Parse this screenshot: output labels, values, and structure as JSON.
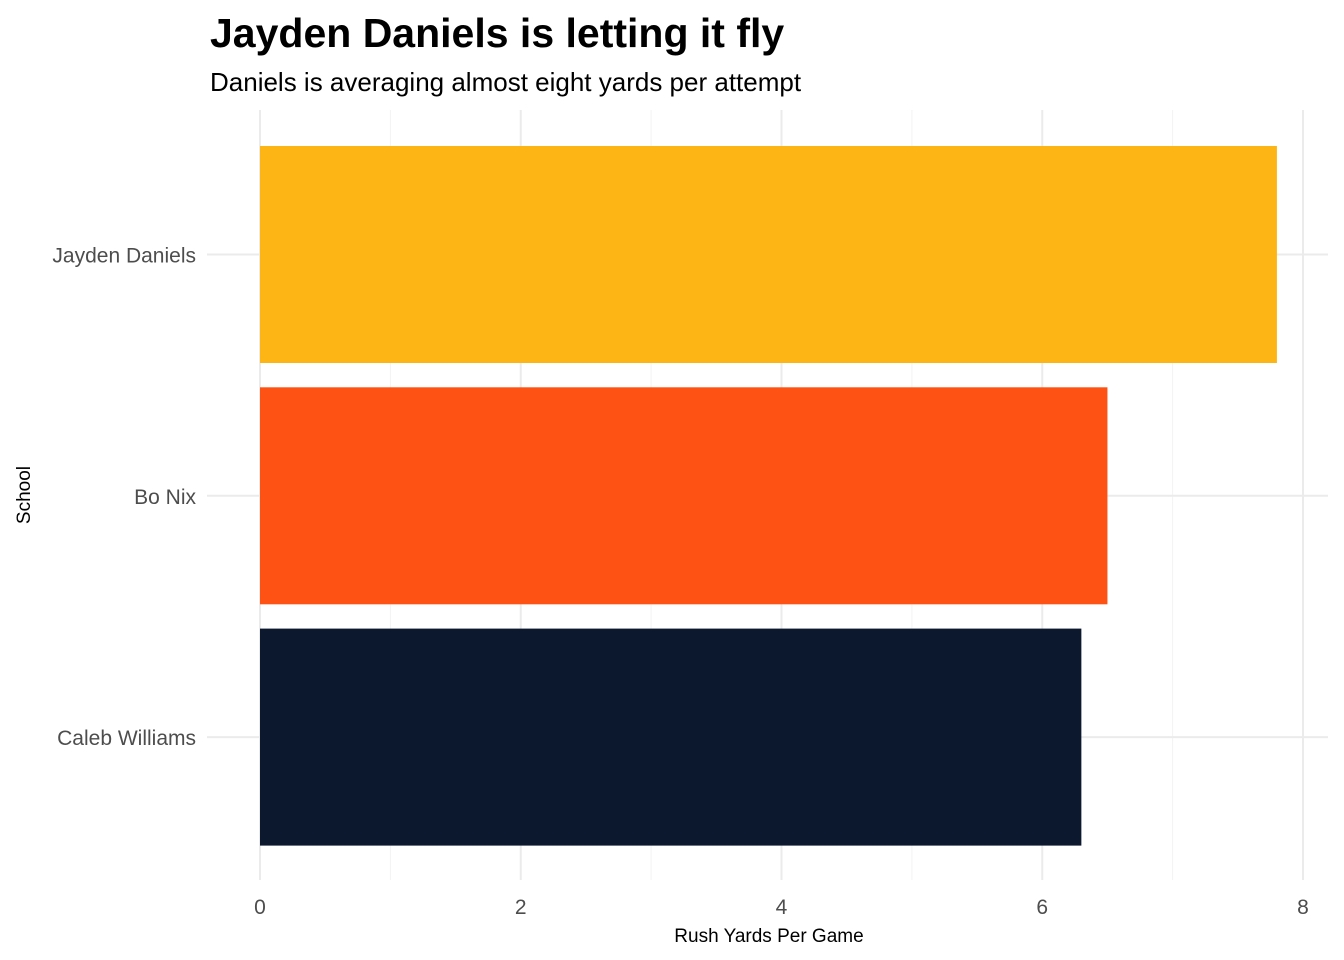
{
  "chart_data": {
    "type": "bar",
    "orientation": "horizontal",
    "title": "Jayden Daniels is letting it fly",
    "subtitle": "Daniels is averaging almost eight yards per attempt",
    "xlabel": "Rush Yards Per Game",
    "ylabel": "School",
    "xlim": [
      0,
      8
    ],
    "xticks": [
      0,
      2,
      4,
      6,
      8
    ],
    "grid": true,
    "legend": "none",
    "categories": [
      "Jayden Daniels",
      "Bo Nix",
      "Caleb Williams"
    ],
    "values": [
      7.8,
      6.5,
      6.3
    ],
    "colors": [
      "#FDB515",
      "#FE5214",
      "#0C182D"
    ]
  }
}
